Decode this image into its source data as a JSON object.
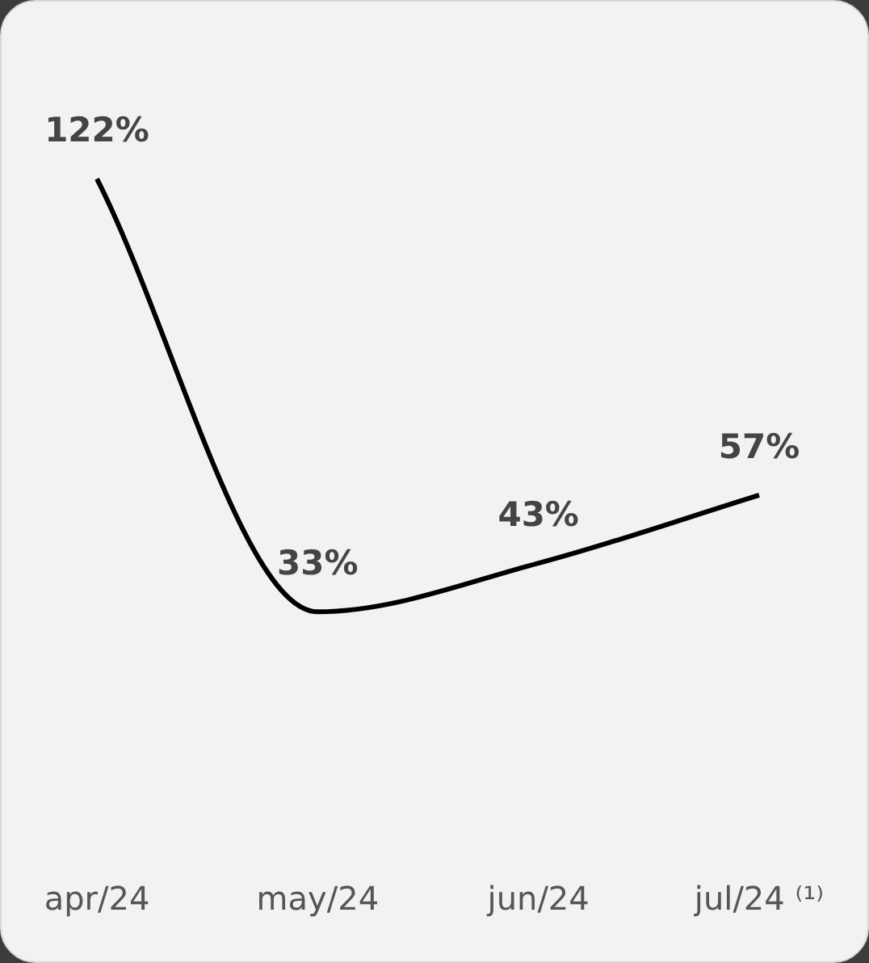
{
  "chart_data": {
    "type": "line",
    "categories": [
      "apr/24",
      "may/24",
      "jun/24",
      "jul/24 ⁽¹⁾"
    ],
    "series": [
      {
        "color": "#000000",
        "values": [
          122,
          33,
          43,
          57
        ],
        "value_labels": [
          "122%",
          "33%",
          "43%",
          "57%"
        ]
      }
    ],
    "marker": "none",
    "grid": false,
    "legend": false,
    "tick_labels": "x"
  }
}
